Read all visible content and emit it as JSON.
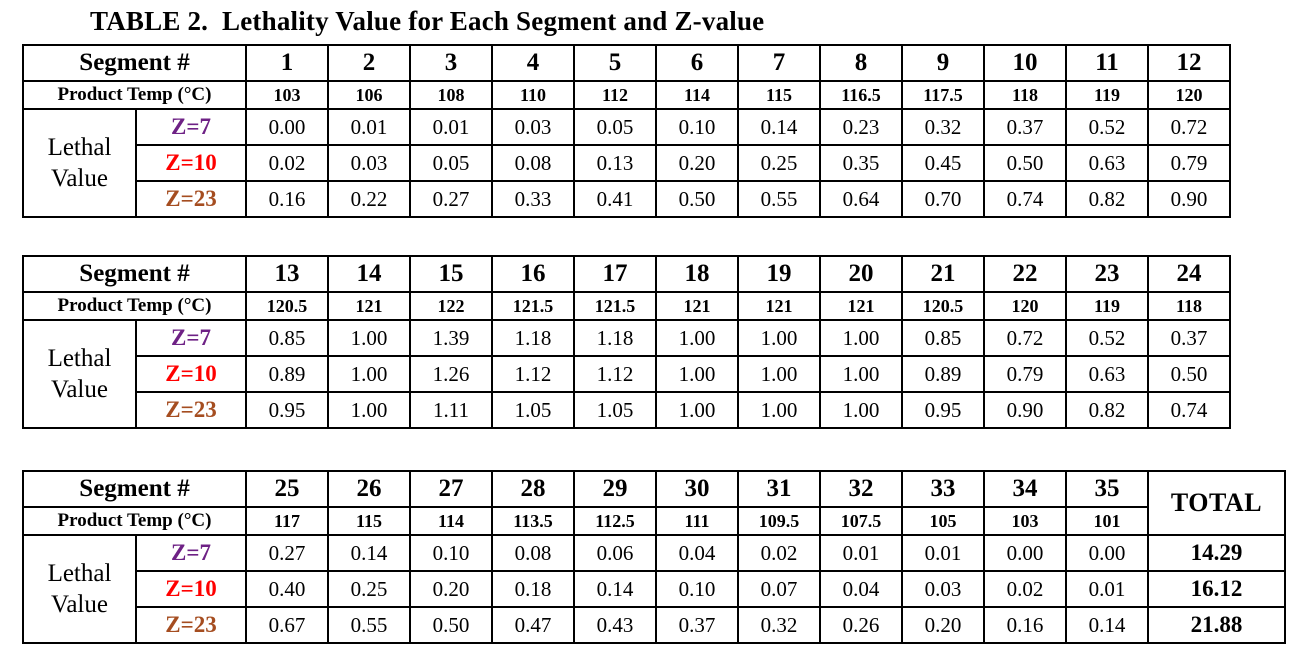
{
  "title": "TABLE 2.  Lethality Value for Each Segment and Z-value",
  "labels": {
    "segment": "Segment #",
    "product_temp": "Product Temp (°C)",
    "lethal": "Lethal\nValue",
    "z7": "Z=7",
    "z10": "Z=10",
    "z23": "Z=23",
    "total": "TOTAL"
  },
  "colors": {
    "z7": "#6E2185",
    "z10": "#FF0000",
    "z23": "#A54D20"
  },
  "tables": [
    {
      "segments": [
        "1",
        "2",
        "3",
        "4",
        "5",
        "6",
        "7",
        "8",
        "9",
        "10",
        "11",
        "12"
      ],
      "temps": [
        "103",
        "106",
        "108",
        "110",
        "112",
        "114",
        "115",
        "116.5",
        "117.5",
        "118",
        "119",
        "120"
      ],
      "z7": [
        "0.00",
        "0.01",
        "0.01",
        "0.03",
        "0.05",
        "0.10",
        "0.14",
        "0.23",
        "0.32",
        "0.37",
        "0.52",
        "0.72"
      ],
      "z10": [
        "0.02",
        "0.03",
        "0.05",
        "0.08",
        "0.13",
        "0.20",
        "0.25",
        "0.35",
        "0.45",
        "0.50",
        "0.63",
        "0.79"
      ],
      "z23": [
        "0.16",
        "0.22",
        "0.27",
        "0.33",
        "0.41",
        "0.50",
        "0.55",
        "0.64",
        "0.70",
        "0.74",
        "0.82",
        "0.90"
      ]
    },
    {
      "segments": [
        "13",
        "14",
        "15",
        "16",
        "17",
        "18",
        "19",
        "20",
        "21",
        "22",
        "23",
        "24"
      ],
      "temps": [
        "120.5",
        "121",
        "122",
        "121.5",
        "121.5",
        "121",
        "121",
        "121",
        "120.5",
        "120",
        "119",
        "118"
      ],
      "z7": [
        "0.85",
        "1.00",
        "1.39",
        "1.18",
        "1.18",
        "1.00",
        "1.00",
        "1.00",
        "0.85",
        "0.72",
        "0.52",
        "0.37"
      ],
      "z10": [
        "0.89",
        "1.00",
        "1.26",
        "1.12",
        "1.12",
        "1.00",
        "1.00",
        "1.00",
        "0.89",
        "0.79",
        "0.63",
        "0.50"
      ],
      "z23": [
        "0.95",
        "1.00",
        "1.11",
        "1.05",
        "1.05",
        "1.00",
        "1.00",
        "1.00",
        "0.95",
        "0.90",
        "0.82",
        "0.74"
      ]
    },
    {
      "segments": [
        "25",
        "26",
        "27",
        "28",
        "29",
        "30",
        "31",
        "32",
        "33",
        "34",
        "35"
      ],
      "temps": [
        "117",
        "115",
        "114",
        "113.5",
        "112.5",
        "111",
        "109.5",
        "107.5",
        "105",
        "103",
        "101"
      ],
      "z7": [
        "0.27",
        "0.14",
        "0.10",
        "0.08",
        "0.06",
        "0.04",
        "0.02",
        "0.01",
        "0.01",
        "0.00",
        "0.00"
      ],
      "z10": [
        "0.40",
        "0.25",
        "0.20",
        "0.18",
        "0.14",
        "0.10",
        "0.07",
        "0.04",
        "0.03",
        "0.02",
        "0.01"
      ],
      "z23": [
        "0.67",
        "0.55",
        "0.50",
        "0.47",
        "0.43",
        "0.37",
        "0.32",
        "0.26",
        "0.20",
        "0.16",
        "0.14"
      ],
      "totals": {
        "z7": "14.29",
        "z10": "16.12",
        "z23": "21.88"
      }
    }
  ]
}
